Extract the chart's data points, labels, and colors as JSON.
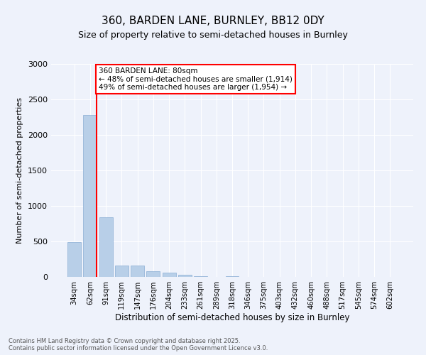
{
  "title_line1": "360, BARDEN LANE, BURNLEY, BB12 0DY",
  "title_line2": "Size of property relative to semi-detached houses in Burnley",
  "xlabel": "Distribution of semi-detached houses by size in Burnley",
  "ylabel": "Number of semi-detached properties",
  "categories": [
    "34sqm",
    "62sqm",
    "91sqm",
    "119sqm",
    "147sqm",
    "176sqm",
    "204sqm",
    "233sqm",
    "261sqm",
    "289sqm",
    "318sqm",
    "346sqm",
    "375sqm",
    "403sqm",
    "432sqm",
    "460sqm",
    "488sqm",
    "517sqm",
    "545sqm",
    "574sqm",
    "602sqm"
  ],
  "values": [
    490,
    2280,
    840,
    160,
    160,
    85,
    60,
    28,
    15,
    5,
    10,
    0,
    0,
    0,
    0,
    0,
    0,
    0,
    0,
    0,
    0
  ],
  "bar_color": "#b8cfe8",
  "bar_edge_color": "#8aadd4",
  "background_color": "#eef2fb",
  "grid_color": "#ffffff",
  "annotation_title": "360 BARDEN LANE: 80sqm",
  "annotation_line1": "← 48% of semi-detached houses are smaller (1,914)",
  "annotation_line2": "49% of semi-detached houses are larger (1,954) →",
  "footer_line1": "Contains HM Land Registry data © Crown copyright and database right 2025.",
  "footer_line2": "Contains public sector information licensed under the Open Government Licence v3.0.",
  "ylim": [
    0,
    3000
  ],
  "yticks": [
    0,
    500,
    1000,
    1500,
    2000,
    2500,
    3000
  ]
}
